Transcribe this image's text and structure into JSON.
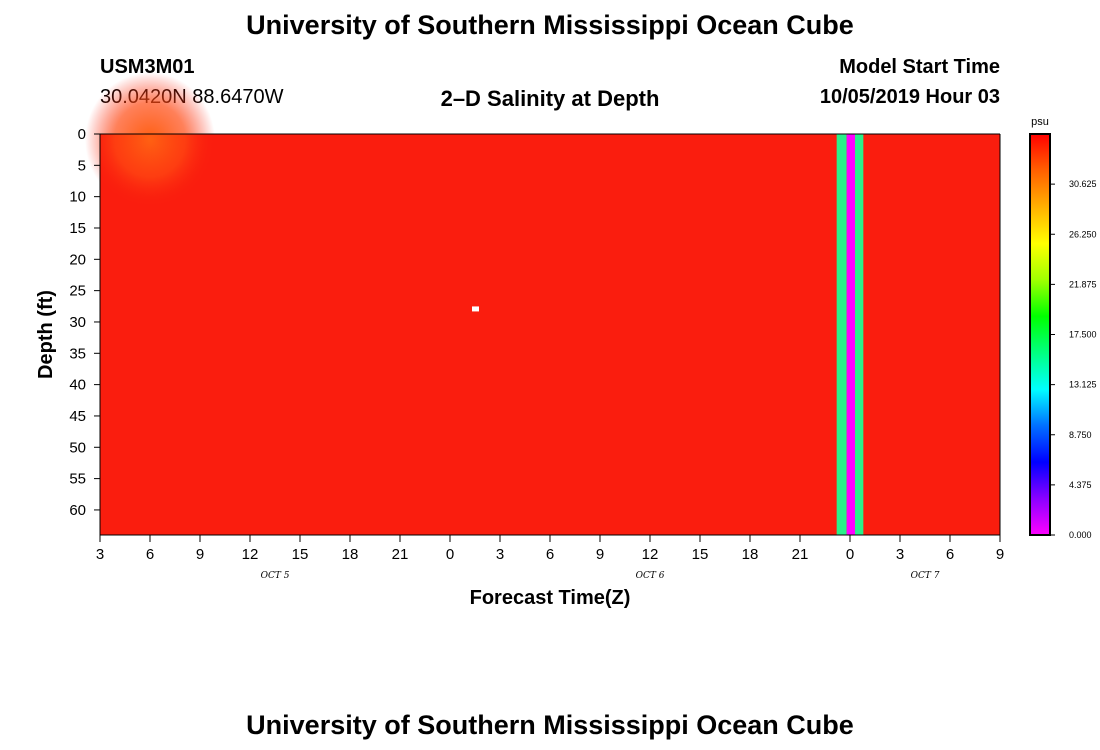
{
  "header": {
    "title": "University of Southern Mississippi Ocean Cube",
    "station_id": "USM3M01",
    "coords": "30.0420N 88.6470W",
    "plot_title": "2–D Salinity at Depth",
    "model_start_label": "Model Start Time",
    "model_start_value": "10/05/2019 Hour 03"
  },
  "footer": {
    "title": "University of Southern Mississippi Ocean Cube"
  },
  "chart_data": {
    "type": "heatmap",
    "title": "2–D Salinity at Depth",
    "xlabel": "Forecast Time(Z)",
    "ylabel": "Depth (ft)",
    "x_tick_labels": [
      "3",
      "6",
      "9",
      "12",
      "15",
      "18",
      "21",
      "0",
      "3",
      "6",
      "9",
      "12",
      "15",
      "18",
      "21",
      "0",
      "3",
      "6",
      "9"
    ],
    "x_date_labels": [
      {
        "label": "OCT 5",
        "at_tick": 3.5
      },
      {
        "label": "OCT 6",
        "at_tick": 11
      },
      {
        "label": "OCT 7",
        "at_tick": 16.5
      }
    ],
    "xlim_hours_from_start": [
      0,
      54
    ],
    "y_ticks": [
      0,
      5,
      10,
      15,
      20,
      25,
      30,
      35,
      40,
      45,
      50,
      55,
      60
    ],
    "ylim": [
      64,
      0
    ],
    "y_inverted": true,
    "colorbar": {
      "unit": "psu",
      "range": [
        0,
        35
      ],
      "tick_labels": [
        "30.625",
        "26.250",
        "21.875",
        "17.500",
        "13.125",
        "8.750",
        "4.375",
        "0.000"
      ],
      "tick_values": [
        30.625,
        26.25,
        21.875,
        17.5,
        13.125,
        8.75,
        4.375,
        0
      ],
      "colors": [
        "#ff00ff",
        "#8a00ff",
        "#0000ff",
        "#0070ff",
        "#00ffff",
        "#00ff80",
        "#00ff00",
        "#a0ff00",
        "#ffff00",
        "#ffb000",
        "#ff6000",
        "#ff0000"
      ]
    },
    "field": {
      "background_salinity": 34.6,
      "background_color": "#fa1d0e",
      "surface_fresher_patch": {
        "x_hours": [
          0,
          6
        ],
        "depth_ft": [
          0,
          8
        ],
        "salinity": 33.2,
        "color": "#ff6012"
      },
      "missing_point": {
        "x_hours": 22.5,
        "depth_ft": 28
      },
      "anomaly_columns": [
        {
          "x_hours": [
            44.2,
            44.8
          ],
          "salinity": 17.0,
          "color": "#2af08a"
        },
        {
          "x_hours": [
            44.8,
            45.3
          ],
          "salinity": 0.0,
          "color": "#ff00ff"
        },
        {
          "x_hours": [
            45.3,
            45.8
          ],
          "salinity": 17.0,
          "color": "#2af08a"
        }
      ]
    }
  }
}
